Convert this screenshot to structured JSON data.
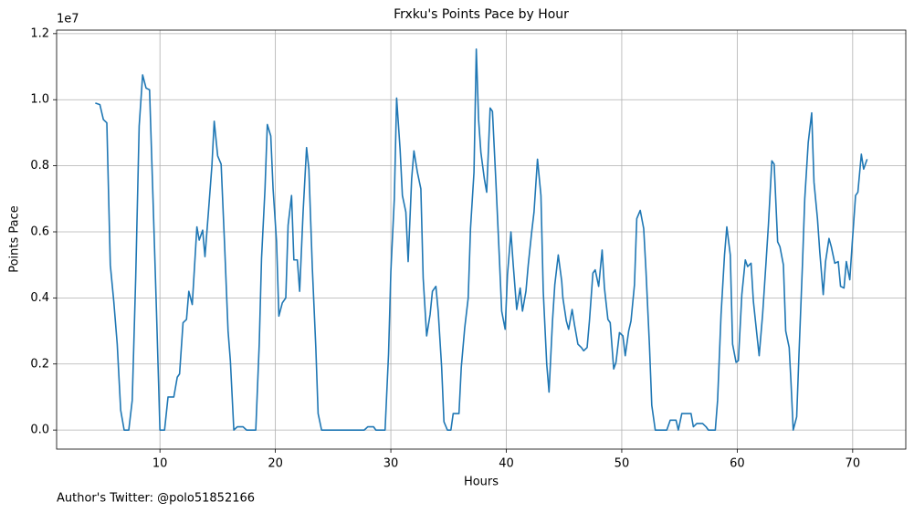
{
  "chart_data": {
    "type": "line",
    "title": "Frxku's Points Pace by Hour",
    "x_label": "Hours",
    "y_label": "Points Pace",
    "y_offset_label": "1e7",
    "footnote": "Author's Twitter: @polo51852166",
    "xlim": [
      1.05,
      74.6
    ],
    "ylim": [
      -576500,
      12106500
    ],
    "xticks": [
      10,
      20,
      30,
      40,
      50,
      60,
      70
    ],
    "yticks": [
      {
        "value": 0,
        "label": "0.0"
      },
      {
        "value": 2000000,
        "label": "0.2"
      },
      {
        "value": 4000000,
        "label": "0.4"
      },
      {
        "value": 6000000,
        "label": "0.6"
      },
      {
        "value": 8000000,
        "label": "0.8"
      },
      {
        "value": 10000000,
        "label": "1.0"
      },
      {
        "value": 12000000,
        "label": "1.2"
      }
    ],
    "grid": true,
    "x": [
      4.4,
      4.8,
      5.1,
      5.4,
      5.7,
      6.0,
      6.3,
      6.6,
      6.9,
      7.3,
      7.6,
      7.9,
      8.2,
      8.5,
      8.8,
      9.1,
      9.4,
      9.7,
      10.0,
      10.4,
      10.7,
      11.2,
      11.5,
      11.7,
      12.0,
      12.3,
      12.5,
      12.8,
      13.2,
      13.4,
      13.7,
      13.9,
      14.2,
      14.5,
      14.7,
      15.0,
      15.3,
      15.6,
      15.9,
      16.1,
      16.4,
      16.7,
      17.2,
      17.5,
      18.3,
      18.6,
      18.8,
      19.1,
      19.3,
      19.6,
      19.8,
      20.1,
      20.3,
      20.6,
      20.9,
      21.1,
      21.4,
      21.6,
      21.9,
      22.1,
      22.4,
      22.7,
      22.9,
      23.2,
      23.5,
      23.7,
      24.0,
      27.7,
      28.0,
      28.5,
      28.7,
      29.5,
      29.8,
      30.0,
      30.3,
      30.5,
      30.8,
      31.0,
      31.3,
      31.5,
      31.8,
      32.0,
      32.3,
      32.6,
      32.8,
      33.1,
      33.4,
      33.6,
      33.9,
      34.1,
      34.4,
      34.6,
      34.9,
      35.2,
      35.4,
      35.9,
      36.1,
      36.4,
      36.7,
      36.9,
      37.2,
      37.4,
      37.6,
      37.8,
      38.1,
      38.3,
      38.6,
      38.8,
      39.1,
      39.4,
      39.6,
      39.9,
      40.1,
      40.4,
      40.6,
      40.9,
      41.2,
      41.4,
      41.7,
      41.9,
      42.2,
      42.4,
      42.7,
      43.0,
      43.2,
      43.5,
      43.7,
      44.0,
      44.2,
      44.5,
      44.8,
      44.9,
      45.2,
      45.4,
      45.7,
      45.9,
      46.2,
      46.5,
      46.7,
      47.0,
      47.2,
      47.5,
      47.7,
      48.0,
      48.3,
      48.5,
      48.8,
      49.0,
      49.3,
      49.5,
      49.8,
      50.1,
      50.3,
      50.6,
      50.8,
      51.1,
      51.3,
      51.6,
      51.9,
      52.1,
      52.4,
      52.6,
      52.9,
      53.9,
      54.2,
      54.7,
      54.9,
      55.2,
      56.0,
      56.2,
      56.5,
      57.0,
      57.3,
      57.5,
      58.1,
      58.3,
      58.6,
      58.9,
      59.1,
      59.4,
      59.6,
      59.9,
      60.1,
      60.4,
      60.7,
      60.9,
      61.2,
      61.4,
      61.7,
      61.9,
      62.2,
      62.5,
      62.7,
      63.0,
      63.2,
      63.5,
      63.7,
      64.0,
      64.2,
      64.5,
      64.65,
      64.85,
      65.15,
      65.35,
      65.65,
      65.85,
      66.15,
      66.45,
      66.65,
      66.95,
      67.15,
      67.45,
      67.65,
      67.95,
      68.15,
      68.45,
      68.75,
      68.95,
      69.25,
      69.45,
      69.75,
      69.95,
      70.25,
      70.45,
      70.75,
      70.95,
      71.25
    ],
    "series": [
      {
        "color": "#1f77b4",
        "values": [
          9900000,
          9850000,
          9400000,
          9300000,
          5000000,
          3900000,
          2600000,
          600000,
          0,
          0,
          900000,
          4600000,
          9200000,
          10750000,
          10350000,
          10300000,
          7000000,
          3600000,
          0,
          0,
          1000000,
          1000000,
          1600000,
          1700000,
          3250000,
          3350000,
          4200000,
          3800000,
          6150000,
          5750000,
          6050000,
          5250000,
          6600000,
          8000000,
          9350000,
          8300000,
          8050000,
          5600000,
          3000000,
          2100000,
          0,
          100000,
          100000,
          0,
          0,
          2600000,
          5200000,
          7300000,
          9250000,
          8900000,
          7300000,
          5700000,
          3450000,
          3850000,
          4000000,
          6200000,
          7100000,
          5150000,
          5150000,
          4200000,
          6600000,
          8550000,
          7900000,
          4900000,
          2500000,
          500000,
          0,
          0,
          100000,
          100000,
          0,
          0,
          2300000,
          4800000,
          7000000,
          10050000,
          8500000,
          7100000,
          6600000,
          5100000,
          7600000,
          8450000,
          7800000,
          7300000,
          4600000,
          2850000,
          3500000,
          4200000,
          4350000,
          3600000,
          1900000,
          250000,
          0,
          0,
          500000,
          500000,
          1900000,
          3100000,
          4000000,
          6100000,
          7800000,
          11530000,
          9400000,
          8400000,
          7600000,
          7200000,
          9750000,
          9650000,
          7500000,
          5200000,
          3600000,
          3050000,
          4700000,
          6000000,
          5000000,
          3650000,
          4300000,
          3600000,
          4200000,
          5000000,
          6000000,
          6600000,
          8200000,
          7100000,
          4200000,
          2000000,
          1150000,
          3300000,
          4400000,
          5300000,
          4500000,
          4000000,
          3300000,
          3050000,
          3650000,
          3200000,
          2600000,
          2500000,
          2400000,
          2500000,
          3300000,
          4750000,
          4850000,
          4350000,
          5450000,
          4300000,
          3350000,
          3250000,
          1850000,
          2050000,
          2950000,
          2850000,
          2250000,
          3000000,
          3300000,
          4400000,
          6400000,
          6650000,
          6100000,
          4800000,
          2550000,
          750000,
          0,
          0,
          300000,
          300000,
          0,
          500000,
          500000,
          100000,
          200000,
          200000,
          100000,
          0,
          0,
          900000,
          3500000,
          5300000,
          6150000,
          5300000,
          2600000,
          2050000,
          2100000,
          4100000,
          5150000,
          4950000,
          5050000,
          3900000,
          2900000,
          2250000,
          3500000,
          5100000,
          6200000,
          8150000,
          8050000,
          5700000,
          5550000,
          5000000,
          3000000,
          2500000,
          1500000,
          0,
          400000,
          2300000,
          5000000,
          7000000,
          8700000,
          9600000,
          7500000,
          6400000,
          5400000,
          4100000,
          5100000,
          5800000,
          5550000,
          5050000,
          5100000,
          4350000,
          4300000,
          5100000,
          4550000,
          5600000,
          7100000,
          7200000,
          8350000,
          7900000,
          8200000
        ]
      }
    ]
  }
}
